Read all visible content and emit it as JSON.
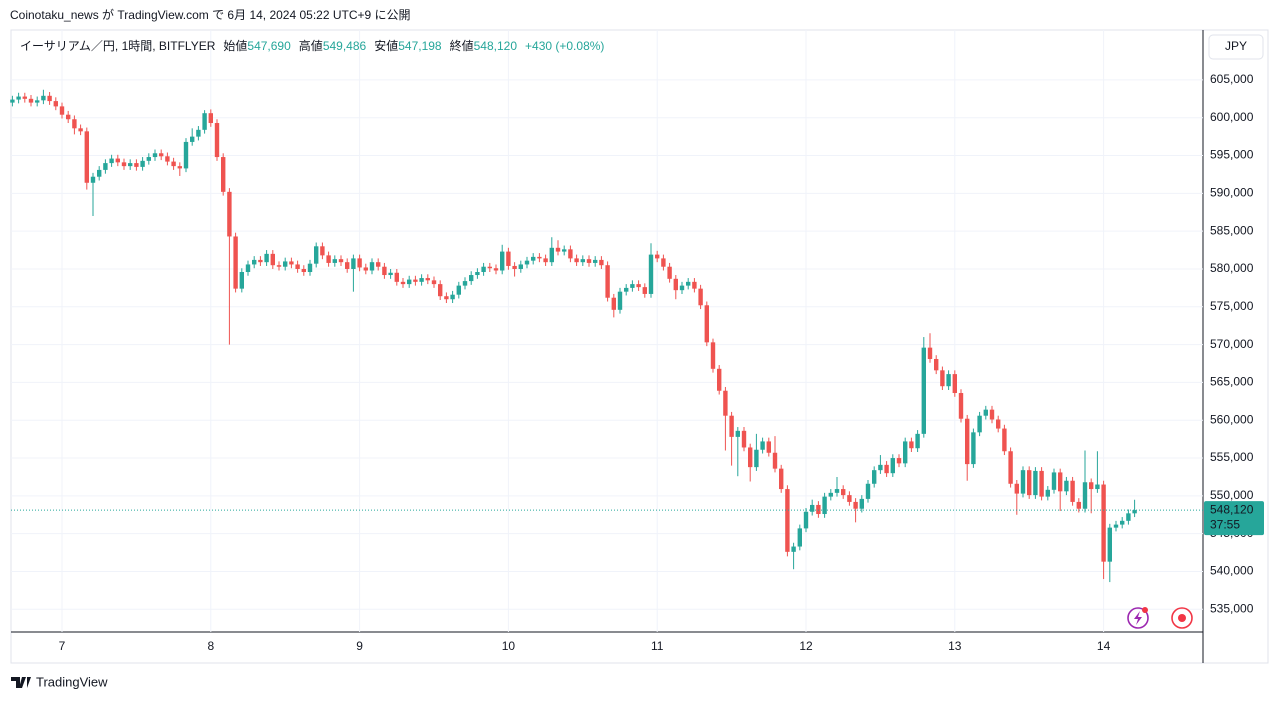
{
  "publisher": "Coinotaku_news が TradingView.com で 6月 14, 2024 05:22 UTC+9 に公開",
  "brand": "TradingView",
  "chart_data": {
    "type": "candlestick",
    "symbol": "イーサリアム／円, 1時間, BITFLYER",
    "ohlc_legend": [
      {
        "label": "始値",
        "value": "547,690"
      },
      {
        "label": "高値",
        "value": "549,486"
      },
      {
        "label": "安値",
        "value": "547,198"
      },
      {
        "label": "終値",
        "value": "548,120"
      }
    ],
    "change": "+430 (+0.08%)",
    "currency": "JPY",
    "up_color": "#26a69a",
    "down_color": "#ef5350",
    "grid": true,
    "last_price": {
      "value": 548120,
      "label": "548,120"
    },
    "countdown": "37:55",
    "categories": [
      null,
      null,
      null,
      null,
      null,
      null,
      null,
      null,
      "7",
      null,
      null,
      null,
      null,
      null,
      null,
      null,
      null,
      null,
      null,
      null,
      null,
      null,
      null,
      null,
      null,
      null,
      null,
      null,
      null,
      null,
      null,
      null,
      "8",
      null,
      null,
      null,
      null,
      null,
      null,
      null,
      null,
      null,
      null,
      null,
      null,
      null,
      null,
      null,
      null,
      null,
      null,
      null,
      null,
      null,
      null,
      null,
      "9",
      null,
      null,
      null,
      null,
      null,
      null,
      null,
      null,
      null,
      null,
      null,
      null,
      null,
      null,
      null,
      null,
      null,
      null,
      null,
      null,
      null,
      null,
      null,
      "10",
      null,
      null,
      null,
      null,
      null,
      null,
      null,
      null,
      null,
      null,
      null,
      null,
      null,
      null,
      null,
      null,
      null,
      null,
      null,
      null,
      null,
      null,
      null,
      "11",
      null,
      null,
      null,
      null,
      null,
      null,
      null,
      null,
      null,
      null,
      null,
      null,
      null,
      null,
      null,
      null,
      null,
      null,
      null,
      null,
      null,
      null,
      null,
      "12",
      null,
      null,
      null,
      null,
      null,
      null,
      null,
      null,
      null,
      null,
      null,
      null,
      null,
      null,
      null,
      null,
      null,
      null,
      null,
      null,
      null,
      null,
      null,
      "13",
      null,
      null,
      null,
      null,
      null,
      null,
      null,
      null,
      null,
      null,
      null,
      null,
      null,
      null,
      null,
      null,
      null,
      null,
      null,
      null,
      null,
      null,
      null,
      "14",
      null,
      null,
      null,
      null,
      null
    ],
    "open": [
      602000,
      602400,
      602800,
      602500,
      602000,
      602300,
      602900,
      602200,
      601500,
      600400,
      599800,
      598600,
      598200,
      591400,
      592200,
      593100,
      594000,
      594600,
      594100,
      593600,
      594000,
      593500,
      594300,
      594800,
      595300,
      594900,
      594200,
      593600,
      593300,
      596800,
      597500,
      598400,
      600600,
      599300,
      594800,
      590200,
      584300,
      577400,
      579600,
      580600,
      581200,
      580900,
      582000,
      580500,
      580300,
      581000,
      580600,
      580000,
      579600,
      580700,
      583000,
      581800,
      580800,
      581300,
      580900,
      580000,
      581400,
      580200,
      579800,
      580900,
      580300,
      579200,
      579500,
      578300,
      578000,
      578600,
      578300,
      578800,
      578500,
      578000,
      576400,
      576000,
      576600,
      577800,
      578400,
      579200,
      579600,
      580300,
      580100,
      579800,
      582300,
      580400,
      580000,
      580600,
      581100,
      581600,
      581400,
      580900,
      582800,
      582300,
      582600,
      581400,
      580900,
      581300,
      580800,
      581200,
      580500,
      576200,
      574600,
      577000,
      577500,
      578000,
      577600,
      576700,
      581900,
      581400,
      580300,
      578700,
      577200,
      577800,
      578300,
      577400,
      575200,
      570300,
      566800,
      563900,
      560600,
      557800,
      558600,
      556400,
      553800,
      556100,
      557200,
      555700,
      553600,
      550900,
      542600,
      543300,
      545700,
      547900,
      548800,
      547600,
      549900,
      550400,
      550900,
      550100,
      549200,
      548300,
      549600,
      551600,
      553400,
      554100,
      553000,
      555000,
      554300,
      557200,
      556300,
      558200,
      569600,
      568100,
      566600,
      564500,
      566100,
      563600,
      560200,
      554200,
      558400,
      560600,
      561400,
      560100,
      558900,
      555900,
      551600,
      550300,
      553400,
      550100,
      553300,
      549900,
      550800,
      553100,
      550600,
      552000,
      549200,
      548300,
      551800,
      550900,
      551500,
      541300,
      545800,
      546200,
      546700,
      547690
    ],
    "high": [
      602900,
      603300,
      603300,
      603000,
      602800,
      603700,
      603400,
      602700,
      602000,
      600900,
      600300,
      599100,
      598700,
      592700,
      593600,
      594500,
      595100,
      595100,
      594600,
      594500,
      594500,
      594800,
      595300,
      595800,
      595800,
      595400,
      594700,
      594100,
      597300,
      598600,
      598900,
      601000,
      601100,
      599800,
      595300,
      590700,
      584800,
      580100,
      581100,
      581700,
      581700,
      582500,
      582500,
      581000,
      581500,
      581500,
      581100,
      580500,
      581200,
      583500,
      583500,
      582300,
      581800,
      581800,
      581400,
      581900,
      581900,
      580700,
      581400,
      581400,
      580800,
      580000,
      580000,
      578800,
      579100,
      579100,
      579300,
      579300,
      579000,
      578500,
      576900,
      577100,
      578300,
      578900,
      579700,
      580100,
      580800,
      580800,
      580600,
      583200,
      582800,
      580900,
      581100,
      581600,
      582100,
      582100,
      581900,
      584200,
      583800,
      583100,
      583100,
      581900,
      581800,
      581800,
      581700,
      581700,
      581000,
      576700,
      577500,
      578000,
      578500,
      578500,
      578100,
      583400,
      582400,
      581900,
      580800,
      579200,
      578300,
      578800,
      578800,
      577900,
      575700,
      570800,
      567300,
      564400,
      561100,
      559100,
      559100,
      556900,
      558200,
      557700,
      557700,
      557900,
      554100,
      551400,
      543800,
      546200,
      548400,
      549500,
      549300,
      550400,
      550900,
      552500,
      551400,
      550600,
      549700,
      550100,
      552100,
      553900,
      555400,
      554600,
      555500,
      555500,
      557700,
      557700,
      558700,
      571000,
      571500,
      568600,
      567100,
      566600,
      566600,
      564100,
      560700,
      558900,
      561100,
      561900,
      561900,
      560600,
      559400,
      556400,
      552100,
      553900,
      553900,
      553800,
      553800,
      551300,
      553600,
      553600,
      552500,
      552500,
      549700,
      556000,
      552300,
      555900,
      552000,
      546300,
      546700,
      547200,
      548200,
      549486
    ],
    "low": [
      601500,
      601900,
      602000,
      601500,
      601500,
      601800,
      601700,
      601000,
      599900,
      599300,
      597800,
      597700,
      590500,
      587000,
      591700,
      592600,
      593500,
      593600,
      593100,
      593100,
      593000,
      593000,
      593800,
      594300,
      594400,
      593700,
      593100,
      592300,
      592800,
      596300,
      597000,
      597900,
      598800,
      594300,
      589700,
      570000,
      576900,
      576900,
      579100,
      580100,
      580400,
      580400,
      580000,
      579800,
      579800,
      580100,
      579500,
      579100,
      579100,
      580200,
      581300,
      580300,
      580300,
      580400,
      579500,
      577000,
      579700,
      579300,
      579300,
      579800,
      578700,
      578700,
      577800,
      577500,
      577500,
      577800,
      577800,
      578000,
      577500,
      575900,
      575500,
      575500,
      576100,
      577300,
      577900,
      578700,
      579100,
      579600,
      579300,
      579300,
      579900,
      579000,
      579500,
      580100,
      580600,
      580900,
      580400,
      580400,
      581800,
      581800,
      580900,
      580400,
      580400,
      580300,
      580300,
      580000,
      575700,
      573600,
      574100,
      576500,
      577000,
      577100,
      576200,
      576200,
      580900,
      579800,
      578200,
      576000,
      576700,
      577300,
      576900,
      574700,
      569800,
      566300,
      563400,
      556000,
      554000,
      552600,
      555900,
      551900,
      553300,
      555600,
      555200,
      553100,
      550400,
      542000,
      540300,
      542800,
      545200,
      547400,
      547100,
      547100,
      549400,
      549900,
      549600,
      548700,
      546500,
      547800,
      549100,
      551100,
      552900,
      552500,
      552500,
      553800,
      553800,
      555800,
      555800,
      557700,
      567600,
      566100,
      564000,
      564000,
      563100,
      559700,
      552000,
      553700,
      557900,
      560100,
      559600,
      558400,
      555400,
      551100,
      547500,
      549800,
      549600,
      549600,
      549400,
      549400,
      550300,
      548000,
      550100,
      548700,
      547800,
      547800,
      547700,
      550400,
      539000,
      538600,
      545300,
      545700,
      546200,
      547198
    ],
    "close": [
      602400,
      602800,
      602500,
      602000,
      602300,
      602900,
      602200,
      601500,
      600400,
      599800,
      598600,
      598200,
      591400,
      592200,
      593100,
      594000,
      594600,
      594100,
      593600,
      594000,
      593500,
      594300,
      594800,
      595300,
      594900,
      594200,
      593600,
      593300,
      596800,
      597500,
      598400,
      600600,
      599300,
      594800,
      590200,
      584300,
      577400,
      579600,
      580600,
      581200,
      580900,
      582000,
      580500,
      580300,
      581000,
      580600,
      580000,
      579600,
      580700,
      583000,
      581800,
      580800,
      581300,
      580900,
      580000,
      581400,
      580200,
      579800,
      580900,
      580300,
      579200,
      579500,
      578300,
      578000,
      578600,
      578300,
      578800,
      578500,
      578000,
      576400,
      576000,
      576600,
      577800,
      578400,
      579200,
      579600,
      580300,
      580100,
      579800,
      582300,
      580400,
      580000,
      580600,
      581100,
      581600,
      581400,
      580900,
      582800,
      582300,
      582600,
      581400,
      580900,
      581300,
      580800,
      581200,
      580500,
      576200,
      574600,
      577000,
      577500,
      578000,
      577600,
      576700,
      581900,
      581400,
      580300,
      578700,
      577200,
      577800,
      578300,
      577400,
      575200,
      570300,
      566800,
      563900,
      560600,
      557800,
      558600,
      556400,
      553800,
      556100,
      557200,
      555700,
      553600,
      550900,
      542600,
      543300,
      545700,
      547900,
      548800,
      547600,
      549900,
      550400,
      550900,
      550100,
      549200,
      548300,
      549600,
      551600,
      553400,
      554100,
      553000,
      555000,
      554300,
      557200,
      556300,
      558200,
      569600,
      568100,
      566600,
      564500,
      566100,
      563600,
      560200,
      554200,
      558400,
      560600,
      561400,
      560100,
      558900,
      555900,
      551600,
      550300,
      553400,
      550100,
      553300,
      549900,
      550800,
      553100,
      550600,
      552000,
      549200,
      548300,
      551800,
      550900,
      551500,
      541300,
      545800,
      546200,
      546700,
      547690,
      548120
    ],
    "ylim": [
      532000,
      611600
    ],
    "yticks": [
      {
        "value": 535000,
        "label": "535,000"
      },
      {
        "value": 540000,
        "label": "540,000"
      },
      {
        "value": 545000,
        "label": "545,000"
      },
      {
        "value": 550000,
        "label": "550,000"
      },
      {
        "value": 555000,
        "label": "555,000"
      },
      {
        "value": 560000,
        "label": "560,000"
      },
      {
        "value": 565000,
        "label": "565,000"
      },
      {
        "value": 570000,
        "label": "570,000"
      },
      {
        "value": 575000,
        "label": "575,000"
      },
      {
        "value": 580000,
        "label": "580,000"
      },
      {
        "value": 585000,
        "label": "585,000"
      },
      {
        "value": 590000,
        "label": "590,000"
      },
      {
        "value": 595000,
        "label": "595,000"
      },
      {
        "value": 600000,
        "label": "600,000"
      },
      {
        "value": 605000,
        "label": "605,000"
      }
    ]
  }
}
